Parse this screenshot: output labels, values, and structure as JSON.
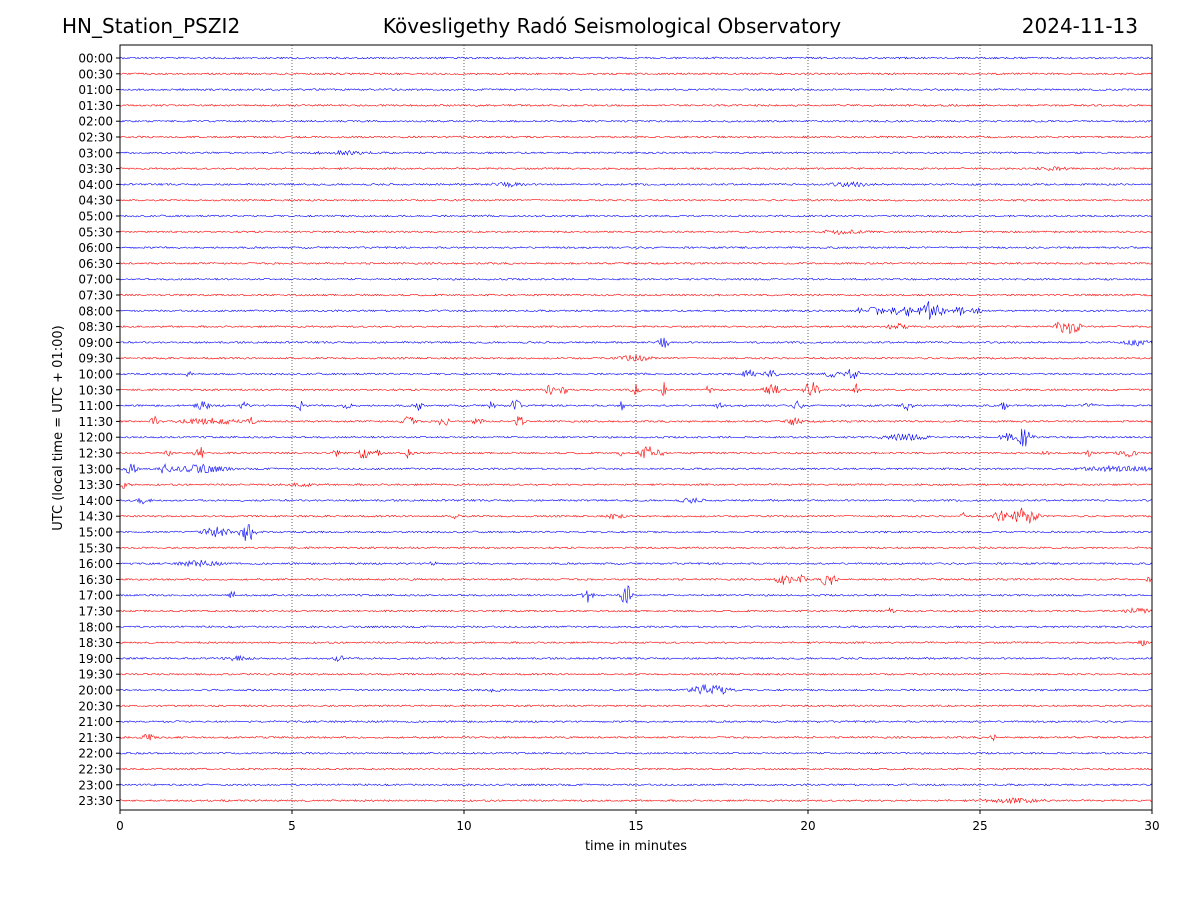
{
  "header": {
    "station": "HN_Station_PSZI2",
    "observatory": "Kövesligethy Radó Seismological Observatory",
    "date": "2024-11-13"
  },
  "colors": {
    "even_row": "#0000ff",
    "odd_row": "#ff0000",
    "axis": "#000000",
    "grid": "#000000"
  },
  "chart_data": {
    "type": "line",
    "title": "Kövesligethy Radó Seismological Observatory",
    "xlabel": "time in minutes",
    "ylabel": "UTC (local time = UTC + 01:00)",
    "xlim": [
      0,
      30
    ],
    "xticks": [
      0,
      5,
      10,
      15,
      20,
      25,
      30
    ],
    "vertical_gridlines_minutes": [
      5,
      10,
      15,
      20,
      25
    ],
    "rows": [
      "00:00",
      "00:30",
      "01:00",
      "01:30",
      "02:00",
      "02:30",
      "03:00",
      "03:30",
      "04:00",
      "04:30",
      "05:00",
      "05:30",
      "06:00",
      "06:30",
      "07:00",
      "07:30",
      "08:00",
      "08:30",
      "09:00",
      "09:30",
      "10:00",
      "10:30",
      "11:00",
      "11:30",
      "12:00",
      "12:30",
      "13:00",
      "13:30",
      "14:00",
      "14:30",
      "15:00",
      "15:30",
      "16:00",
      "16:30",
      "17:00",
      "17:30",
      "18:00",
      "18:30",
      "19:00",
      "19:30",
      "20:00",
      "20:30",
      "21:00",
      "21:30",
      "22:00",
      "22:30",
      "23:00",
      "23:30"
    ],
    "noise_amplitude": 1,
    "events": [
      {
        "row": "03:00",
        "minute": 6.5,
        "amp": 2,
        "dur": 1.0
      },
      {
        "row": "03:30",
        "minute": 27.1,
        "amp": 2,
        "dur": 0.6
      },
      {
        "row": "04:00",
        "minute": 11.3,
        "amp": 2,
        "dur": 0.7
      },
      {
        "row": "04:00",
        "minute": 21.2,
        "amp": 2,
        "dur": 0.8
      },
      {
        "row": "05:30",
        "minute": 21.0,
        "amp": 2,
        "dur": 0.8
      },
      {
        "row": "08:00",
        "minute": 21.5,
        "amp": 3,
        "dur": 0.15
      },
      {
        "row": "08:00",
        "minute": 22.0,
        "amp": 6,
        "dur": 0.3
      },
      {
        "row": "08:00",
        "minute": 22.5,
        "amp": 5,
        "dur": 0.2
      },
      {
        "row": "08:00",
        "minute": 22.9,
        "amp": 7,
        "dur": 0.2
      },
      {
        "row": "08:00",
        "minute": 23.5,
        "amp": 9,
        "dur": 0.4
      },
      {
        "row": "08:00",
        "minute": 23.9,
        "amp": 5,
        "dur": 0.2
      },
      {
        "row": "08:00",
        "minute": 24.4,
        "amp": 7,
        "dur": 0.2
      },
      {
        "row": "08:00",
        "minute": 24.9,
        "amp": 5,
        "dur": 0.2
      },
      {
        "row": "08:30",
        "minute": 22.6,
        "amp": 3,
        "dur": 0.4
      },
      {
        "row": "08:30",
        "minute": 27.4,
        "amp": 7,
        "dur": 0.3
      },
      {
        "row": "08:30",
        "minute": 27.7,
        "amp": 8,
        "dur": 0.3
      },
      {
        "row": "09:00",
        "minute": 15.8,
        "amp": 7,
        "dur": 0.2
      },
      {
        "row": "09:00",
        "minute": 29.6,
        "amp": 3,
        "dur": 0.6
      },
      {
        "row": "09:30",
        "minute": 15.0,
        "amp": 3,
        "dur": 0.7
      },
      {
        "row": "10:00",
        "minute": 2.0,
        "amp": 4,
        "dur": 0.1
      },
      {
        "row": "10:00",
        "minute": 18.3,
        "amp": 4,
        "dur": 0.3
      },
      {
        "row": "10:00",
        "minute": 18.9,
        "amp": 4,
        "dur": 0.3
      },
      {
        "row": "10:00",
        "minute": 20.7,
        "amp": 3,
        "dur": 0.3
      },
      {
        "row": "10:00",
        "minute": 21.3,
        "amp": 6,
        "dur": 0.3
      },
      {
        "row": "10:30",
        "minute": 12.5,
        "amp": 7,
        "dur": 0.15
      },
      {
        "row": "10:30",
        "minute": 12.9,
        "amp": 6,
        "dur": 0.15
      },
      {
        "row": "10:30",
        "minute": 15.0,
        "amp": 5,
        "dur": 0.2
      },
      {
        "row": "10:30",
        "minute": 15.8,
        "amp": 8,
        "dur": 0.15
      },
      {
        "row": "10:30",
        "minute": 17.1,
        "amp": 4,
        "dur": 0.15
      },
      {
        "row": "10:30",
        "minute": 19.0,
        "amp": 6,
        "dur": 0.4
      },
      {
        "row": "10:30",
        "minute": 20.1,
        "amp": 9,
        "dur": 0.3
      },
      {
        "row": "10:30",
        "minute": 21.4,
        "amp": 7,
        "dur": 0.15
      },
      {
        "row": "11:00",
        "minute": 2.4,
        "amp": 4,
        "dur": 0.3
      },
      {
        "row": "11:00",
        "minute": 3.6,
        "amp": 3,
        "dur": 0.2
      },
      {
        "row": "11:00",
        "minute": 5.2,
        "amp": 7,
        "dur": 0.15
      },
      {
        "row": "11:00",
        "minute": 6.6,
        "amp": 6,
        "dur": 0.15
      },
      {
        "row": "11:00",
        "minute": 8.7,
        "amp": 5,
        "dur": 0.15
      },
      {
        "row": "11:00",
        "minute": 10.8,
        "amp": 4,
        "dur": 0.15
      },
      {
        "row": "11:00",
        "minute": 11.5,
        "amp": 7,
        "dur": 0.2
      },
      {
        "row": "11:00",
        "minute": 14.6,
        "amp": 5,
        "dur": 0.15
      },
      {
        "row": "11:00",
        "minute": 17.4,
        "amp": 3,
        "dur": 0.15
      },
      {
        "row": "11:00",
        "minute": 19.7,
        "amp": 4,
        "dur": 0.2
      },
      {
        "row": "11:00",
        "minute": 22.9,
        "amp": 5,
        "dur": 0.2
      },
      {
        "row": "11:00",
        "minute": 25.7,
        "amp": 4,
        "dur": 0.15
      },
      {
        "row": "11:00",
        "minute": 28.2,
        "amp": 5,
        "dur": 0.2
      },
      {
        "row": "11:30",
        "minute": 1.0,
        "amp": 5,
        "dur": 0.15
      },
      {
        "row": "11:30",
        "minute": 2.6,
        "amp": 3,
        "dur": 1.2
      },
      {
        "row": "11:30",
        "minute": 3.8,
        "amp": 5,
        "dur": 0.15
      },
      {
        "row": "11:30",
        "minute": 8.4,
        "amp": 5,
        "dur": 0.3
      },
      {
        "row": "11:30",
        "minute": 9.4,
        "amp": 7,
        "dur": 0.2
      },
      {
        "row": "11:30",
        "minute": 10.4,
        "amp": 4,
        "dur": 0.2
      },
      {
        "row": "11:30",
        "minute": 11.6,
        "amp": 6,
        "dur": 0.2
      },
      {
        "row": "11:30",
        "minute": 16.5,
        "amp": 3,
        "dur": 0.1
      },
      {
        "row": "11:30",
        "minute": 19.6,
        "amp": 4,
        "dur": 0.3
      },
      {
        "row": "12:00",
        "minute": 22.8,
        "amp": 3,
        "dur": 0.9
      },
      {
        "row": "12:00",
        "minute": 25.8,
        "amp": 4,
        "dur": 0.3
      },
      {
        "row": "12:00",
        "minute": 26.3,
        "amp": 10,
        "dur": 0.35
      },
      {
        "row": "12:30",
        "minute": 1.4,
        "amp": 3,
        "dur": 0.15
      },
      {
        "row": "12:30",
        "minute": 2.3,
        "amp": 8,
        "dur": 0.2
      },
      {
        "row": "12:30",
        "minute": 6.3,
        "amp": 3,
        "dur": 0.2
      },
      {
        "row": "12:30",
        "minute": 7.1,
        "amp": 8,
        "dur": 0.2
      },
      {
        "row": "12:30",
        "minute": 7.5,
        "amp": 4,
        "dur": 0.15
      },
      {
        "row": "12:30",
        "minute": 8.4,
        "amp": 6,
        "dur": 0.15
      },
      {
        "row": "12:30",
        "minute": 14.6,
        "amp": 3,
        "dur": 0.2
      },
      {
        "row": "12:30",
        "minute": 15.4,
        "amp": 7,
        "dur": 0.5
      },
      {
        "row": "12:30",
        "minute": 26.9,
        "amp": 3,
        "dur": 0.15
      },
      {
        "row": "12:30",
        "minute": 28.2,
        "amp": 4,
        "dur": 0.15
      },
      {
        "row": "12:30",
        "minute": 29.3,
        "amp": 4,
        "dur": 0.4
      },
      {
        "row": "13:00",
        "minute": 0.3,
        "amp": 6,
        "dur": 0.3
      },
      {
        "row": "13:00",
        "minute": 1.3,
        "amp": 7,
        "dur": 0.2
      },
      {
        "row": "13:00",
        "minute": 2.3,
        "amp": 4,
        "dur": 1.1
      },
      {
        "row": "13:00",
        "minute": 29.2,
        "amp": 3,
        "dur": 1.6
      },
      {
        "row": "13:30",
        "minute": 0.1,
        "amp": 4,
        "dur": 0.3
      },
      {
        "row": "13:30",
        "minute": 5.3,
        "amp": 2,
        "dur": 0.4
      },
      {
        "row": "14:00",
        "minute": 0.7,
        "amp": 3,
        "dur": 0.3
      },
      {
        "row": "14:00",
        "minute": 16.6,
        "amp": 2,
        "dur": 0.5
      },
      {
        "row": "14:30",
        "minute": 9.8,
        "amp": 3,
        "dur": 0.2
      },
      {
        "row": "14:30",
        "minute": 14.4,
        "amp": 3,
        "dur": 0.3
      },
      {
        "row": "14:30",
        "minute": 24.5,
        "amp": 4,
        "dur": 0.1
      },
      {
        "row": "14:30",
        "minute": 25.6,
        "amp": 6,
        "dur": 0.3
      },
      {
        "row": "14:30",
        "minute": 26.3,
        "amp": 10,
        "dur": 0.5
      },
      {
        "row": "15:00",
        "minute": 2.8,
        "amp": 5,
        "dur": 0.6
      },
      {
        "row": "15:00",
        "minute": 3.7,
        "amp": 11,
        "dur": 0.3
      },
      {
        "row": "16:00",
        "minute": 2.3,
        "amp": 3,
        "dur": 0.8
      },
      {
        "row": "16:00",
        "minute": 9.1,
        "amp": 4,
        "dur": 0.15
      },
      {
        "row": "16:30",
        "minute": 19.3,
        "amp": 7,
        "dur": 0.3
      },
      {
        "row": "16:30",
        "minute": 19.8,
        "amp": 4,
        "dur": 0.2
      },
      {
        "row": "16:30",
        "minute": 20.6,
        "amp": 8,
        "dur": 0.3
      },
      {
        "row": "16:30",
        "minute": 29.9,
        "amp": 3,
        "dur": 0.1
      },
      {
        "row": "17:00",
        "minute": 3.3,
        "amp": 4,
        "dur": 0.2
      },
      {
        "row": "17:00",
        "minute": 13.6,
        "amp": 10,
        "dur": 0.2
      },
      {
        "row": "17:00",
        "minute": 14.7,
        "amp": 12,
        "dur": 0.25
      },
      {
        "row": "17:30",
        "minute": 22.4,
        "amp": 3,
        "dur": 0.15
      },
      {
        "row": "17:30",
        "minute": 29.6,
        "amp": 3,
        "dur": 0.5
      },
      {
        "row": "18:30",
        "minute": 29.8,
        "amp": 3,
        "dur": 0.3
      },
      {
        "row": "19:00",
        "minute": 3.4,
        "amp": 2,
        "dur": 0.5
      },
      {
        "row": "19:00",
        "minute": 6.4,
        "amp": 3,
        "dur": 0.3
      },
      {
        "row": "20:00",
        "minute": 10.9,
        "amp": 3,
        "dur": 0.2
      },
      {
        "row": "20:00",
        "minute": 17.2,
        "amp": 6,
        "dur": 0.8
      },
      {
        "row": "21:30",
        "minute": 0.8,
        "amp": 3,
        "dur": 0.3
      },
      {
        "row": "21:30",
        "minute": 25.4,
        "amp": 3,
        "dur": 0.15
      },
      {
        "row": "23:30",
        "minute": 26.0,
        "amp": 2,
        "dur": 1.2
      }
    ]
  }
}
